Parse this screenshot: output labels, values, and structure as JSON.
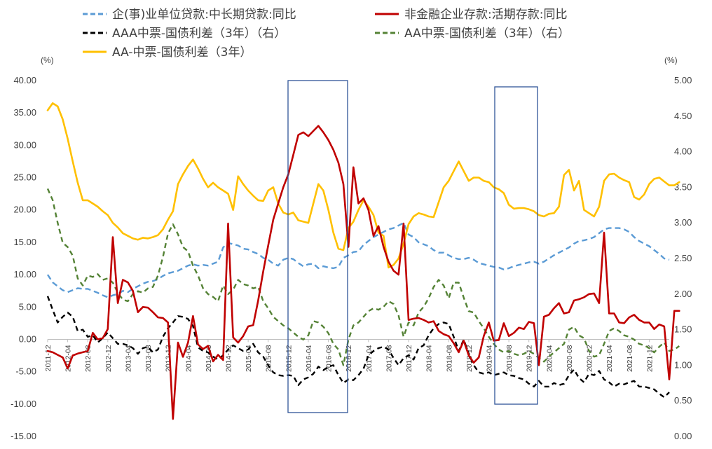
{
  "chart_data": {
    "type": "line",
    "left_axis": {
      "unit_label": "(%)",
      "ylim": [
        -15,
        40
      ],
      "ticks": [
        "40.00",
        "35.00",
        "30.00",
        "25.00",
        "20.00",
        "15.00",
        "10.00",
        "5.00",
        "0.00",
        "-5.00",
        "-10.00",
        "-15.00"
      ]
    },
    "right_axis": {
      "unit_label": "(%)",
      "ylim": [
        0,
        5
      ],
      "ticks": [
        "5.00",
        "4.50",
        "4.00",
        "3.50",
        "3.00",
        "2.50",
        "2.00",
        "1.50",
        "1.00",
        "0.50",
        "0.00"
      ]
    },
    "x_tick_labels": [
      "2011-12",
      "2012-04",
      "2012-08",
      "2012-12",
      "2013-04",
      "2013-08",
      "2013-12",
      "2014-04",
      "2014-08",
      "2014-12",
      "2015-04",
      "2015-08",
      "2015-12",
      "2016-04",
      "2016-08",
      "2016-12",
      "2017-04",
      "2017-08",
      "2017-12",
      "2018-04",
      "2018-08",
      "2018-12",
      "2019-04",
      "2019-08",
      "2019-12",
      "2020-04",
      "2020-08",
      "2020-12",
      "2021-04",
      "2021-08",
      "2021-12"
    ],
    "legend": "top",
    "grid": false,
    "series": [
      {
        "name": "企(事)业单位贷款:中长期贷款:同比",
        "axis": "left",
        "color": "#5b9bd5",
        "dash": "8,5",
        "width": 2.4,
        "values": [
          10.0,
          8.8,
          8.2,
          7.6,
          7.3,
          7.6,
          7.9,
          7.8,
          7.8,
          7.5,
          7.2,
          6.8,
          6.5,
          6.8,
          7.0,
          7.5,
          7.3,
          7.8,
          8.2,
          8.6,
          8.9,
          9.0,
          9.3,
          9.8,
          10.2,
          10.4,
          10.6,
          11.0,
          11.4,
          11.6,
          11.4,
          11.5,
          11.4,
          11.7,
          12.0,
          14.2,
          14.9,
          14.7,
          14.5,
          14.0,
          13.9,
          13.5,
          13.2,
          12.6,
          12.3,
          11.7,
          11.4,
          12.3,
          12.6,
          12.4,
          11.8,
          11.3,
          11.6,
          11.7,
          11.0,
          11.3,
          11.1,
          11.0,
          11.2,
          12.6,
          13.0,
          13.5,
          13.6,
          14.6,
          15.2,
          15.8,
          16.2,
          16.6,
          17.0,
          17.2,
          17.6,
          18.0,
          16.2,
          15.8,
          15.0,
          14.7,
          14.4,
          13.8,
          13.4,
          13.4,
          13.0,
          12.6,
          12.4,
          12.4,
          12.6,
          12.3,
          11.8,
          11.6,
          11.4,
          11.2,
          11.1,
          10.8,
          11.0,
          11.3,
          11.5,
          11.7,
          11.9,
          12.0,
          11.7,
          12.0,
          12.5,
          13.0,
          13.4,
          13.8,
          14.2,
          14.8,
          15.2,
          15.3,
          15.5,
          15.8,
          16.4,
          17.0,
          17.2,
          17.2,
          17.2,
          17.0,
          16.6,
          15.8,
          15.2,
          14.8,
          14.4,
          13.8,
          13.2,
          12.5,
          12.3
        ]
      },
      {
        "name": "非金融企业存款:活期存款:同比",
        "axis": "left",
        "color": "#c00000",
        "dash": "",
        "width": 2.6,
        "values": [
          -1.8,
          -2.0,
          -2.4,
          -2.8,
          -4.5,
          -2.5,
          -2.2,
          -2.0,
          -1.8,
          1.0,
          0.0,
          0.2,
          1.6,
          15.8,
          5.6,
          9.2,
          8.8,
          7.5,
          4.2,
          5.0,
          4.9,
          4.2,
          3.4,
          3.3,
          2.6,
          -12.3,
          -0.5,
          -2.7,
          -0.5,
          3.6,
          -0.8,
          -1.5,
          -1.0,
          -3.4,
          -2.4,
          -3.2,
          17.9,
          0.3,
          -0.5,
          0.5,
          2.0,
          2.2,
          6.0,
          10.5,
          14.5,
          18.5,
          21.0,
          23.5,
          25.5,
          28.5,
          31.6,
          32.0,
          31.4,
          32.2,
          33.0,
          32.0,
          30.8,
          29.3,
          27.3,
          24.0,
          14.3,
          26.6,
          21.0,
          21.8,
          20.0,
          16.0,
          17.5,
          14.3,
          12.0,
          10.6,
          10.0,
          17.9,
          3.0,
          3.2,
          3.3,
          3.0,
          2.6,
          2.8,
          1.3,
          0.8,
          0.5,
          -0.6,
          -2.0,
          -0.2,
          -2.5,
          -3.6,
          -2.8,
          0.5,
          2.6,
          -0.2,
          -0.1,
          2.5,
          0.5,
          1.0,
          1.8,
          1.6,
          2.7,
          2.5,
          -4.0,
          3.5,
          3.8,
          4.8,
          5.6,
          4.0,
          4.2,
          6.0,
          6.2,
          6.5,
          7.0,
          7.1,
          5.6,
          16.5,
          4.0,
          4.0,
          2.6,
          2.5,
          3.4,
          3.8,
          3.0,
          2.6,
          2.6,
          1.6,
          2.3,
          2.0,
          -6.2,
          4.4,
          4.4
        ]
      },
      {
        "name": "AAA中票-国债利差（3年）（右）",
        "axis": "right",
        "color": "#000000",
        "dash": "7,5",
        "width": 2.4,
        "values": [
          1.97,
          1.78,
          1.6,
          1.68,
          1.74,
          1.68,
          1.48,
          1.5,
          1.4,
          1.42,
          1.32,
          1.38,
          1.46,
          1.38,
          1.3,
          1.3,
          1.28,
          1.24,
          1.16,
          1.24,
          1.26,
          1.18,
          1.22,
          1.4,
          1.52,
          1.6,
          1.69,
          1.68,
          1.65,
          1.55,
          1.25,
          1.2,
          1.18,
          1.12,
          1.08,
          1.14,
          1.22,
          1.28,
          1.24,
          1.2,
          1.22,
          1.3,
          1.18,
          1.12,
          1.0,
          0.9,
          0.86,
          0.85,
          0.86,
          0.85,
          0.72,
          0.8,
          0.83,
          0.88,
          0.98,
          0.93,
          0.98,
          1.0,
          0.86,
          0.75,
          0.8,
          0.79,
          0.86,
          0.95,
          1.14,
          1.2,
          1.24,
          1.26,
          1.22,
          1.1,
          1.0,
          1.1,
          1.14,
          1.08,
          1.24,
          1.28,
          1.42,
          1.52,
          1.58,
          1.6,
          1.58,
          1.4,
          1.2,
          1.36,
          1.16,
          1.0,
          0.9,
          0.88,
          0.9,
          0.86,
          0.88,
          0.9,
          0.86,
          0.85,
          0.82,
          0.8,
          0.74,
          0.7,
          0.78,
          0.7,
          0.7,
          0.75,
          0.72,
          0.74,
          0.86,
          0.94,
          0.82,
          0.76,
          0.88,
          0.86,
          0.92,
          0.8,
          0.76,
          0.7,
          0.74,
          0.73,
          0.76,
          0.78,
          0.7,
          0.7,
          0.68,
          0.66,
          0.6,
          0.55,
          0.62
        ]
      },
      {
        "name": "AA中票-国债利差（3年）（右）",
        "axis": "right",
        "color": "#548235",
        "dash": "7,5",
        "width": 2.4,
        "values": [
          3.48,
          3.32,
          3.0,
          2.72,
          2.66,
          2.54,
          2.22,
          2.12,
          2.26,
          2.24,
          2.28,
          2.2,
          2.22,
          2.16,
          2.02,
          1.92,
          1.9,
          2.0,
          2.04,
          2.02,
          2.08,
          2.1,
          2.26,
          2.52,
          2.85,
          2.98,
          2.84,
          2.66,
          2.6,
          2.4,
          2.26,
          2.08,
          2.0,
          1.96,
          1.9,
          2.12,
          2.0,
          2.06,
          2.2,
          2.14,
          2.12,
          2.08,
          2.1,
          1.9,
          1.8,
          1.68,
          1.62,
          1.56,
          1.52,
          1.46,
          1.4,
          1.36,
          1.42,
          1.62,
          1.6,
          1.54,
          1.45,
          1.3,
          1.22,
          1.0,
          1.36,
          1.56,
          1.6,
          1.68,
          1.76,
          1.8,
          1.78,
          1.82,
          1.9,
          1.86,
          1.7,
          1.4,
          1.6,
          1.56,
          1.74,
          1.82,
          1.94,
          2.1,
          2.2,
          2.12,
          1.94,
          2.16,
          2.16,
          1.95,
          1.76,
          1.74,
          1.62,
          1.52,
          1.4,
          1.3,
          1.22,
          1.18,
          1.2,
          1.16,
          1.14,
          1.16,
          1.2,
          1.16,
          1.1,
          1.05,
          1.12,
          1.18,
          1.24,
          1.3,
          1.5,
          1.54,
          1.42,
          1.38,
          1.2,
          1.12,
          1.14,
          1.3,
          1.48,
          1.52,
          1.48,
          1.42,
          1.4,
          1.36,
          1.3,
          1.28,
          1.24,
          1.18,
          1.26,
          1.32,
          1.2,
          1.22,
          1.27
        ]
      },
      {
        "name": "AA-中票-国债利差（3年）",
        "axis": "left",
        "color": "#ffc000",
        "dash": "",
        "width": 2.6,
        "values": [
          35.4,
          36.5,
          36.0,
          34.0,
          31.0,
          27.5,
          24.2,
          21.5,
          21.5,
          21.0,
          20.5,
          19.8,
          19.2,
          18.0,
          17.3,
          16.4,
          16.0,
          15.6,
          15.4,
          15.7,
          15.6,
          15.8,
          16.1,
          17.0,
          18.5,
          19.8,
          24.0,
          25.5,
          26.8,
          27.8,
          26.4,
          24.8,
          23.5,
          24.2,
          23.5,
          23.0,
          22.5,
          20.0,
          25.2,
          24.0,
          23.0,
          22.2,
          21.5,
          21.4,
          23.0,
          23.5,
          21.0,
          19.6,
          19.3,
          19.6,
          18.4,
          18.2,
          18.0,
          21.0,
          24.0,
          23.0,
          20.0,
          16.5,
          14.0,
          13.8,
          17.2,
          18.2,
          20.0,
          21.5,
          20.5,
          19.2,
          16.5,
          16.0,
          11.1,
          11.5,
          12.5,
          14.8,
          17.8,
          19.0,
          19.5,
          19.3,
          19.0,
          18.9,
          21.2,
          23.5,
          24.5,
          26.0,
          27.5,
          26.0,
          24.5,
          25.0,
          25.0,
          24.5,
          24.3,
          23.5,
          23.2,
          22.6,
          20.8,
          20.2,
          20.3,
          20.3,
          20.1,
          19.8,
          19.2,
          19.0,
          19.4,
          19.5,
          20.5,
          25.4,
          26.2,
          23.0,
          24.5,
          20.0,
          19.5,
          19.0,
          20.5,
          24.5,
          25.5,
          25.6,
          25.0,
          24.6,
          24.3,
          22.0,
          21.6,
          22.4,
          24.0,
          24.8,
          25.0,
          24.4,
          23.8,
          23.8,
          24.3
        ]
      }
    ]
  }
}
